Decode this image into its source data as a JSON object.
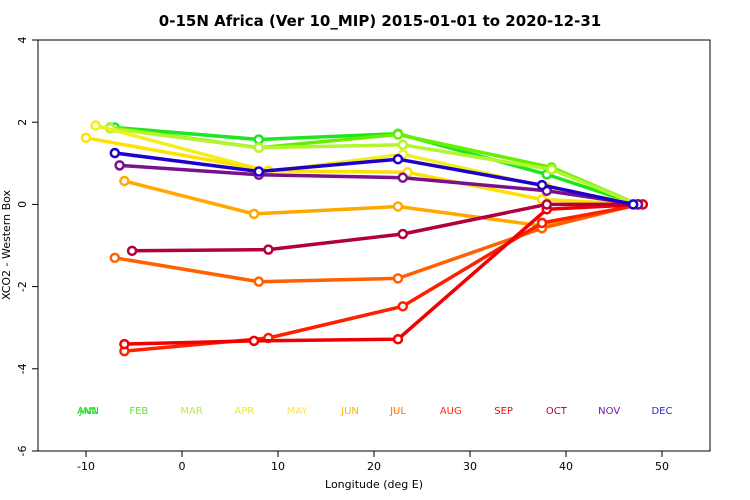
{
  "chart_data": {
    "type": "line",
    "title": "0-15N Africa (Ver 10_MIP)   2015-01-01 to 2020-12-31",
    "xlabel": "Longitude (deg E)",
    "ylabel": "XCO2 - Western Box",
    "xlim": [
      -15,
      55
    ],
    "ylim": [
      -6,
      4
    ],
    "xticks": [
      -10,
      0,
      10,
      20,
      30,
      40,
      50
    ],
    "yticks": [
      -6,
      -4,
      -2,
      0,
      2,
      4
    ],
    "series": [
      {
        "name": "JAN",
        "color": "#1ee61e",
        "x": [
          -7.0,
          8.0,
          22.5,
          38.0,
          47.5
        ],
        "values": [
          1.87,
          1.58,
          1.72,
          0.73,
          0.0
        ]
      },
      {
        "name": "FEB",
        "color": "#66f000",
        "x": [
          -7.5,
          8.0,
          22.5,
          38.5,
          47.5
        ],
        "values": [
          1.87,
          1.38,
          1.7,
          0.9,
          0.0
        ]
      },
      {
        "name": "MAR",
        "color": "#b4f530",
        "x": [
          -7.5,
          8.0,
          23.0,
          38.5,
          47.5
        ],
        "values": [
          1.85,
          1.38,
          1.45,
          0.85,
          0.0
        ]
      },
      {
        "name": "APR",
        "color": "#f0f020",
        "x": [
          -9.0,
          9.0,
          23.0,
          38.0,
          47.5
        ],
        "values": [
          1.92,
          0.8,
          1.22,
          0.42,
          0.0
        ]
      },
      {
        "name": "MAY",
        "color": "#ffe000",
        "x": [
          -10.0,
          9.0,
          23.5,
          37.5,
          47.5
        ],
        "values": [
          1.62,
          0.82,
          0.78,
          0.12,
          0.0
        ]
      },
      {
        "name": "JUN",
        "color": "#ffa800",
        "x": [
          -6.0,
          7.5,
          22.5,
          37.5,
          47.5
        ],
        "values": [
          0.57,
          -0.23,
          -0.05,
          -0.52,
          0.0
        ]
      },
      {
        "name": "JUL",
        "color": "#ff6000",
        "x": [
          -7.0,
          8.0,
          22.5,
          37.5,
          47.5
        ],
        "values": [
          -1.3,
          -1.88,
          -1.8,
          -0.58,
          0.0
        ]
      },
      {
        "name": "AUG",
        "color": "#ff2000",
        "x": [
          -6.0,
          9.0,
          23.0,
          37.5,
          48.0
        ],
        "values": [
          -3.57,
          -3.25,
          -2.48,
          -0.45,
          0.0
        ]
      },
      {
        "name": "SEP",
        "color": "#f00000",
        "x": [
          -6.0,
          7.5,
          22.5,
          38.0,
          48.0
        ],
        "values": [
          -3.4,
          -3.32,
          -3.28,
          -0.12,
          0.0
        ]
      },
      {
        "name": "OCT",
        "color": "#b00040",
        "x": [
          -5.2,
          9.0,
          23.0,
          38.0,
          47.5
        ],
        "values": [
          -1.13,
          -1.1,
          -0.72,
          0.0,
          0.0
        ]
      },
      {
        "name": "NOV",
        "color": "#781090",
        "x": [
          -6.5,
          8.0,
          23.0,
          38.0,
          47.5
        ],
        "values": [
          0.95,
          0.72,
          0.65,
          0.33,
          0.0
        ]
      },
      {
        "name": "DEC",
        "color": "#2000cc",
        "x": [
          -7.0,
          8.0,
          22.5,
          37.5,
          47.0
        ],
        "values": [
          1.25,
          0.8,
          1.1,
          0.47,
          0.0
        ]
      }
    ],
    "month_labels": [
      {
        "label": "ANN",
        "color": "#18c818",
        "x": -9.8
      },
      {
        "label": "JAN",
        "color": "#22e622",
        "x": -9.8
      },
      {
        "label": "FEB",
        "color": "#66e636",
        "x": -4.5
      },
      {
        "label": "MAR",
        "color": "#b4f036",
        "x": 1.0
      },
      {
        "label": "APR",
        "color": "#f0e632",
        "x": 6.5
      },
      {
        "label": "MAY",
        "color": "#ffe63c",
        "x": 12.0
      },
      {
        "label": "JUN",
        "color": "#ffb400",
        "x": 17.5
      },
      {
        "label": "JUL",
        "color": "#ff6e00",
        "x": 22.5
      },
      {
        "label": "AUG",
        "color": "#ff2800",
        "x": 28.0
      },
      {
        "label": "SEP",
        "color": "#f00a14",
        "x": 33.5
      },
      {
        "label": "OCT",
        "color": "#b4003c",
        "x": 39.0
      },
      {
        "label": "NOV",
        "color": "#7814a0",
        "x": 44.5
      },
      {
        "label": "DEC",
        "color": "#2828dc",
        "x": 50.0
      }
    ],
    "month_label_y": -5.0
  }
}
